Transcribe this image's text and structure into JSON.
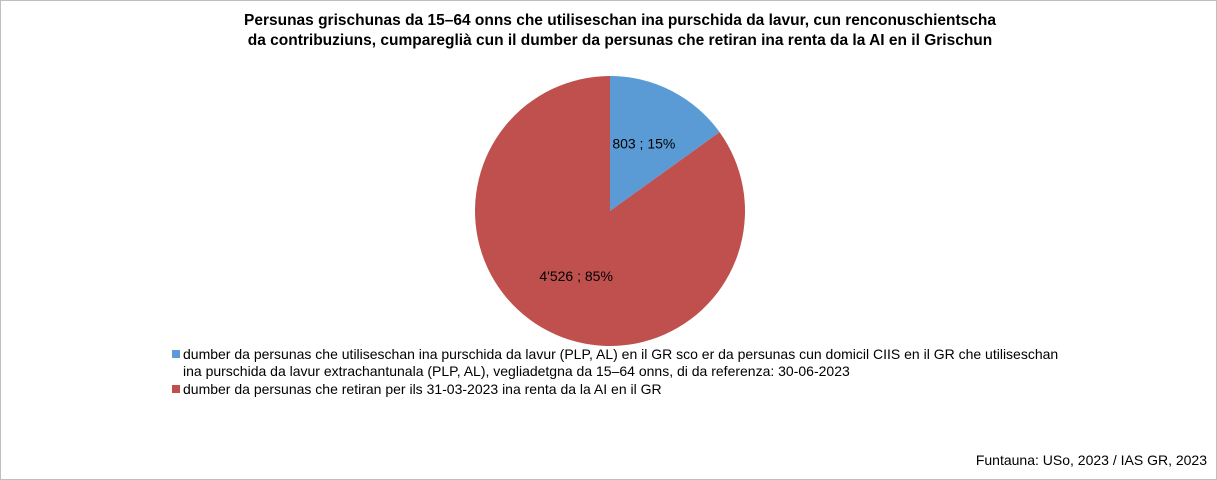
{
  "chart_data": {
    "type": "pie",
    "title": [
      "Persunas grischunas da 15–64 onns che utiliseschan ina purschida da lavur, cun renconuschientscha",
      "da contribuziuns, cumpareglià cun il dumber da persunas che retiran ina renta da la AI en il Grischun"
    ],
    "categories": [
      "dumber da persunas che utiliseschan ina purschida da lavur (PLP, AL) en il GR sco er da persunas cun domicil CIIS en il GR che utiliseschan ina purschida da lavur extrachantunala (PLP, AL), vegliadetgna da 15–64 onns, di da referenza: 30-06-2023",
      "dumber da persunas che retiran per ils 31-03-2023 ina renta da la AI en il GR"
    ],
    "values": [
      803,
      4526
    ],
    "value_labels": [
      "803 ; 15%",
      "4'526 ; 85%"
    ],
    "colors": [
      "#5b9bd5",
      "#c0504d"
    ],
    "source": "Funtauna: USo, 2023 / IAS GR, 2023"
  }
}
